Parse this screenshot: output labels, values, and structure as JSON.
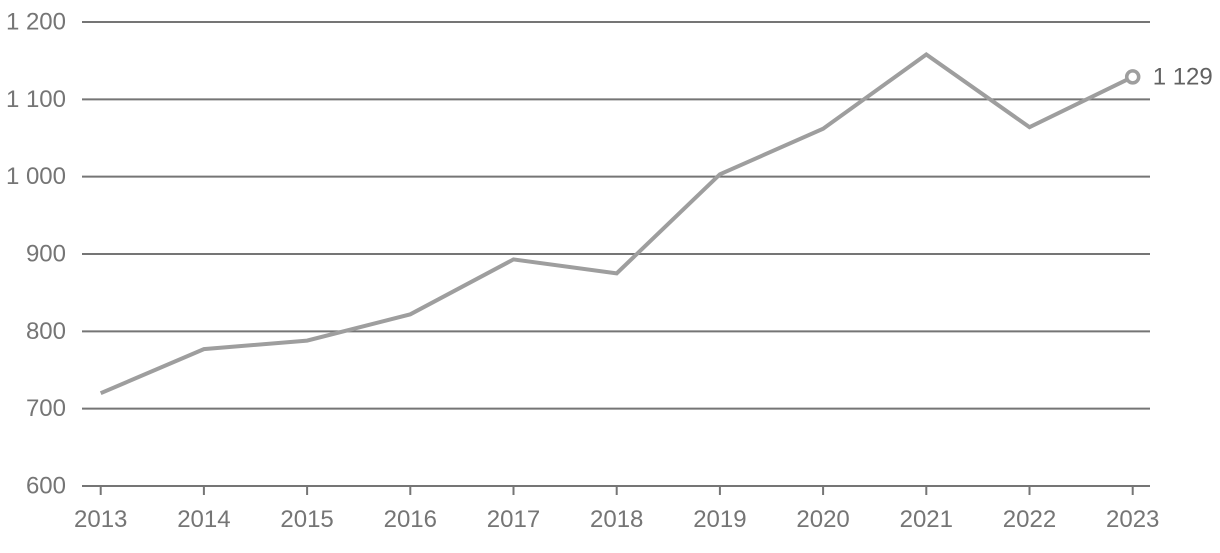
{
  "chart_data": {
    "type": "line",
    "categories": [
      "2013",
      "2014",
      "2015",
      "2016",
      "2017",
      "2018",
      "2019",
      "2020",
      "2021",
      "2022",
      "2023"
    ],
    "values": [
      720,
      777,
      788,
      822,
      893,
      875,
      1003,
      1062,
      1158,
      1064,
      1129
    ],
    "title": "",
    "xlabel": "",
    "ylabel": "",
    "ylim": [
      600,
      1200
    ],
    "yticks": [
      {
        "value": 600,
        "label": "600"
      },
      {
        "value": 700,
        "label": "700"
      },
      {
        "value": 800,
        "label": "800"
      },
      {
        "value": 900,
        "label": "900"
      },
      {
        "value": 1000,
        "label": "1 000"
      },
      {
        "value": 1100,
        "label": "1 100"
      },
      {
        "value": 1200,
        "label": "1 200"
      }
    ],
    "grid": true,
    "legend": "none",
    "end_point_label": "1 129",
    "colors": {
      "line": "#9e9e9e",
      "grid": "#757575",
      "axis_text": "#757575",
      "end_label_text": "#616161",
      "marker_fill": "#ffffff",
      "marker_stroke": "#9e9e9e"
    }
  }
}
